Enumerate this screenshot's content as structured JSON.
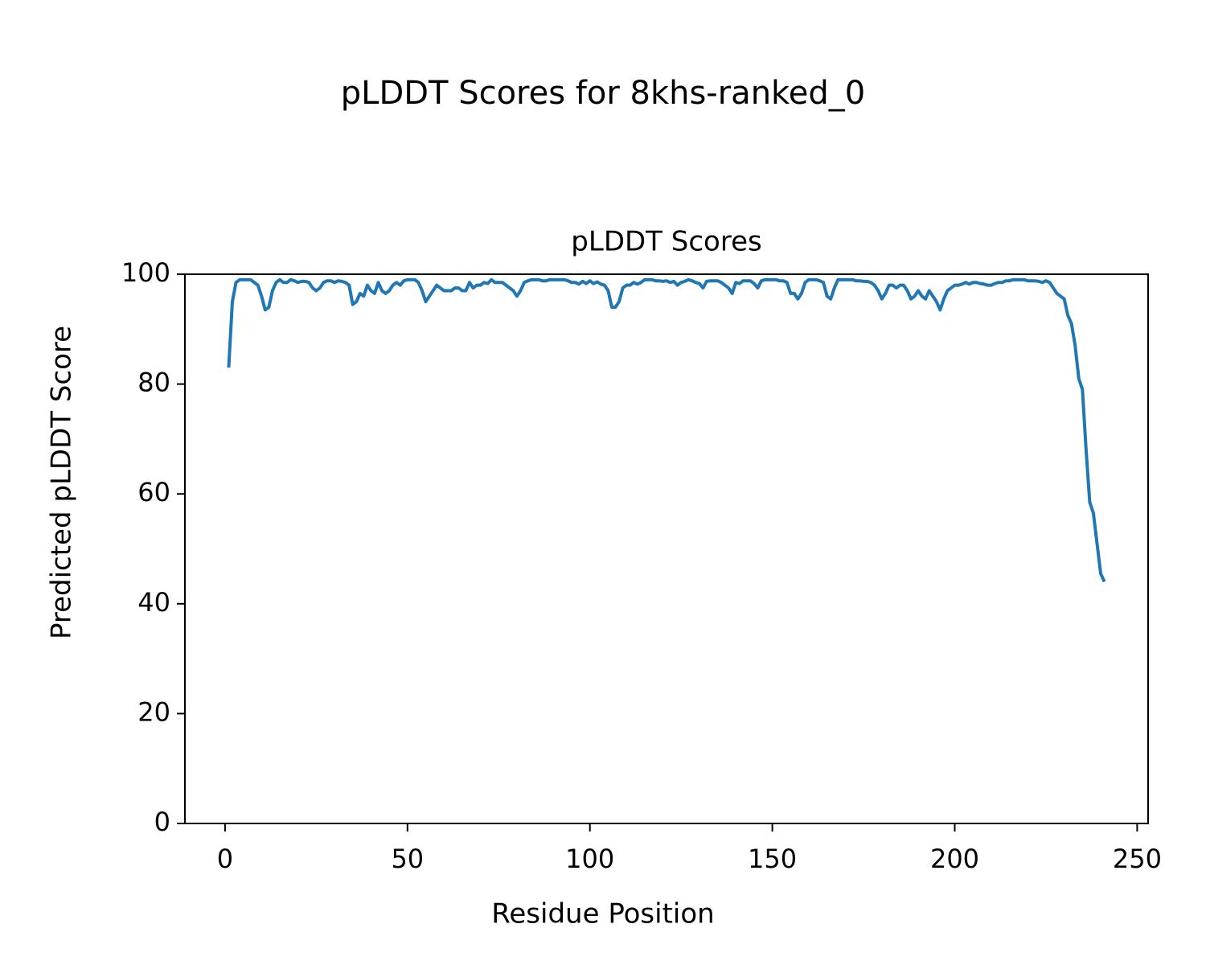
{
  "chart_data": {
    "type": "line",
    "title": "pLDDT Scores for 8khs-ranked_0",
    "subtitle": "pLDDT Scores",
    "x_label": "Residue Position",
    "y_label": "Predicted pLDDT Score",
    "x": [
      1,
      2,
      3,
      4,
      5,
      6,
      7,
      8,
      9,
      10,
      11,
      12,
      13,
      14,
      15,
      16,
      17,
      18,
      19,
      20,
      21,
      22,
      23,
      24,
      25,
      26,
      27,
      28,
      29,
      30,
      31,
      32,
      33,
      34,
      35,
      36,
      37,
      38,
      39,
      40,
      41,
      42,
      43,
      44,
      45,
      46,
      47,
      48,
      49,
      50,
      51,
      52,
      53,
      54,
      55,
      56,
      57,
      58,
      59,
      60,
      61,
      62,
      63,
      64,
      65,
      66,
      67,
      68,
      69,
      70,
      71,
      72,
      73,
      74,
      75,
      76,
      77,
      78,
      79,
      80,
      81,
      82,
      83,
      84,
      85,
      86,
      87,
      88,
      89,
      90,
      91,
      92,
      93,
      94,
      95,
      96,
      97,
      98,
      99,
      100,
      101,
      102,
      103,
      104,
      105,
      106,
      107,
      108,
      109,
      110,
      111,
      112,
      113,
      114,
      115,
      116,
      117,
      118,
      119,
      120,
      121,
      122,
      123,
      124,
      125,
      126,
      127,
      128,
      129,
      130,
      131,
      132,
      133,
      134,
      135,
      136,
      137,
      138,
      139,
      140,
      141,
      142,
      143,
      144,
      145,
      146,
      147,
      148,
      149,
      150,
      151,
      152,
      153,
      154,
      155,
      156,
      157,
      158,
      159,
      160,
      161,
      162,
      163,
      164,
      165,
      166,
      167,
      168,
      169,
      170,
      171,
      172,
      173,
      174,
      175,
      176,
      177,
      178,
      179,
      180,
      181,
      182,
      183,
      184,
      185,
      186,
      187,
      188,
      189,
      190,
      191,
      192,
      193,
      194,
      195,
      196,
      197,
      198,
      199,
      200,
      201,
      202,
      203,
      204,
      205,
      206,
      207,
      208,
      209,
      210,
      211,
      212,
      213,
      214,
      215,
      216,
      217,
      218,
      219,
      220,
      221,
      222,
      223,
      224,
      225,
      226,
      227,
      228,
      229,
      230,
      231,
      232,
      233,
      234,
      235,
      236,
      237,
      238,
      239,
      240,
      241
    ],
    "series": [
      {
        "color": "#1f77b4",
        "values": [
          83,
          95,
          98.5,
          99,
          99,
          99,
          99,
          98.5,
          98,
          96,
          93.5,
          94,
          97,
          98.5,
          99,
          98.5,
          98.5,
          99,
          98.8,
          98.5,
          98.7,
          98.7,
          98.5,
          97.5,
          97,
          97.5,
          98.5,
          98.8,
          98.8,
          98.5,
          98.8,
          98.7,
          98.5,
          98,
          94.5,
          95,
          96.5,
          96,
          98,
          97,
          96.5,
          98.5,
          97,
          96.5,
          97,
          98,
          98.5,
          98,
          98.8,
          99,
          99,
          99,
          98.5,
          97,
          95,
          96,
          97,
          98,
          97.5,
          97,
          97,
          97,
          97.5,
          97.5,
          97,
          97,
          98.5,
          97.5,
          98,
          98,
          98.5,
          98.3,
          99,
          98.5,
          98.5,
          98.5,
          98,
          97.5,
          97,
          96,
          97,
          98.5,
          98.8,
          99,
          99,
          99,
          98.8,
          98.8,
          99,
          99,
          99,
          99,
          99,
          98.8,
          98.5,
          98.5,
          98.2,
          98.7,
          98.3,
          98.8,
          98.3,
          98.6,
          98.2,
          98,
          97,
          94,
          94,
          95,
          97.5,
          98,
          98,
          98.5,
          98.2,
          98.5,
          99,
          99,
          99,
          98.8,
          98.8,
          98.7,
          98.8,
          98.5,
          98.7,
          98,
          98.5,
          98.7,
          99,
          98.8,
          98.5,
          98.3,
          97.5,
          98.7,
          98.8,
          98.8,
          98.8,
          98.5,
          98,
          97.5,
          96.5,
          98.5,
          98.3,
          98.8,
          98.8,
          98.8,
          98.3,
          97.5,
          98.8,
          99,
          99,
          99,
          99,
          98.8,
          98.8,
          98.5,
          96.5,
          96.5,
          95.5,
          96.5,
          98.5,
          99,
          99,
          99,
          98.8,
          98.5,
          96,
          95.5,
          97.5,
          99,
          99,
          99,
          99,
          99,
          98.8,
          98.8,
          98.7,
          98.7,
          98.5,
          98,
          97,
          95.5,
          96.5,
          98,
          98,
          97.5,
          98,
          98,
          97,
          95.5,
          96,
          97,
          96,
          95.5,
          97,
          96,
          95,
          93.5,
          95.5,
          97,
          97.5,
          98,
          98,
          98.2,
          98.5,
          98.2,
          98.5,
          98.5,
          98.3,
          98.2,
          98,
          98,
          98.3,
          98.5,
          98.5,
          98.8,
          98.8,
          99,
          99,
          99,
          99,
          98.8,
          98.8,
          98.8,
          98.7,
          98.5,
          98.8,
          98.5,
          97.5,
          96.5,
          96,
          95.5,
          92.5,
          91,
          87,
          81,
          79,
          68,
          58.5,
          56.5,
          51,
          45.5,
          44
        ]
      }
    ],
    "xlim": [
      -11,
      253
    ],
    "xticks": [
      0,
      50,
      100,
      150,
      200,
      250
    ],
    "ylim": [
      0,
      100
    ],
    "yticks": [
      0,
      20,
      40,
      60,
      80,
      100
    ],
    "grid": false
  }
}
